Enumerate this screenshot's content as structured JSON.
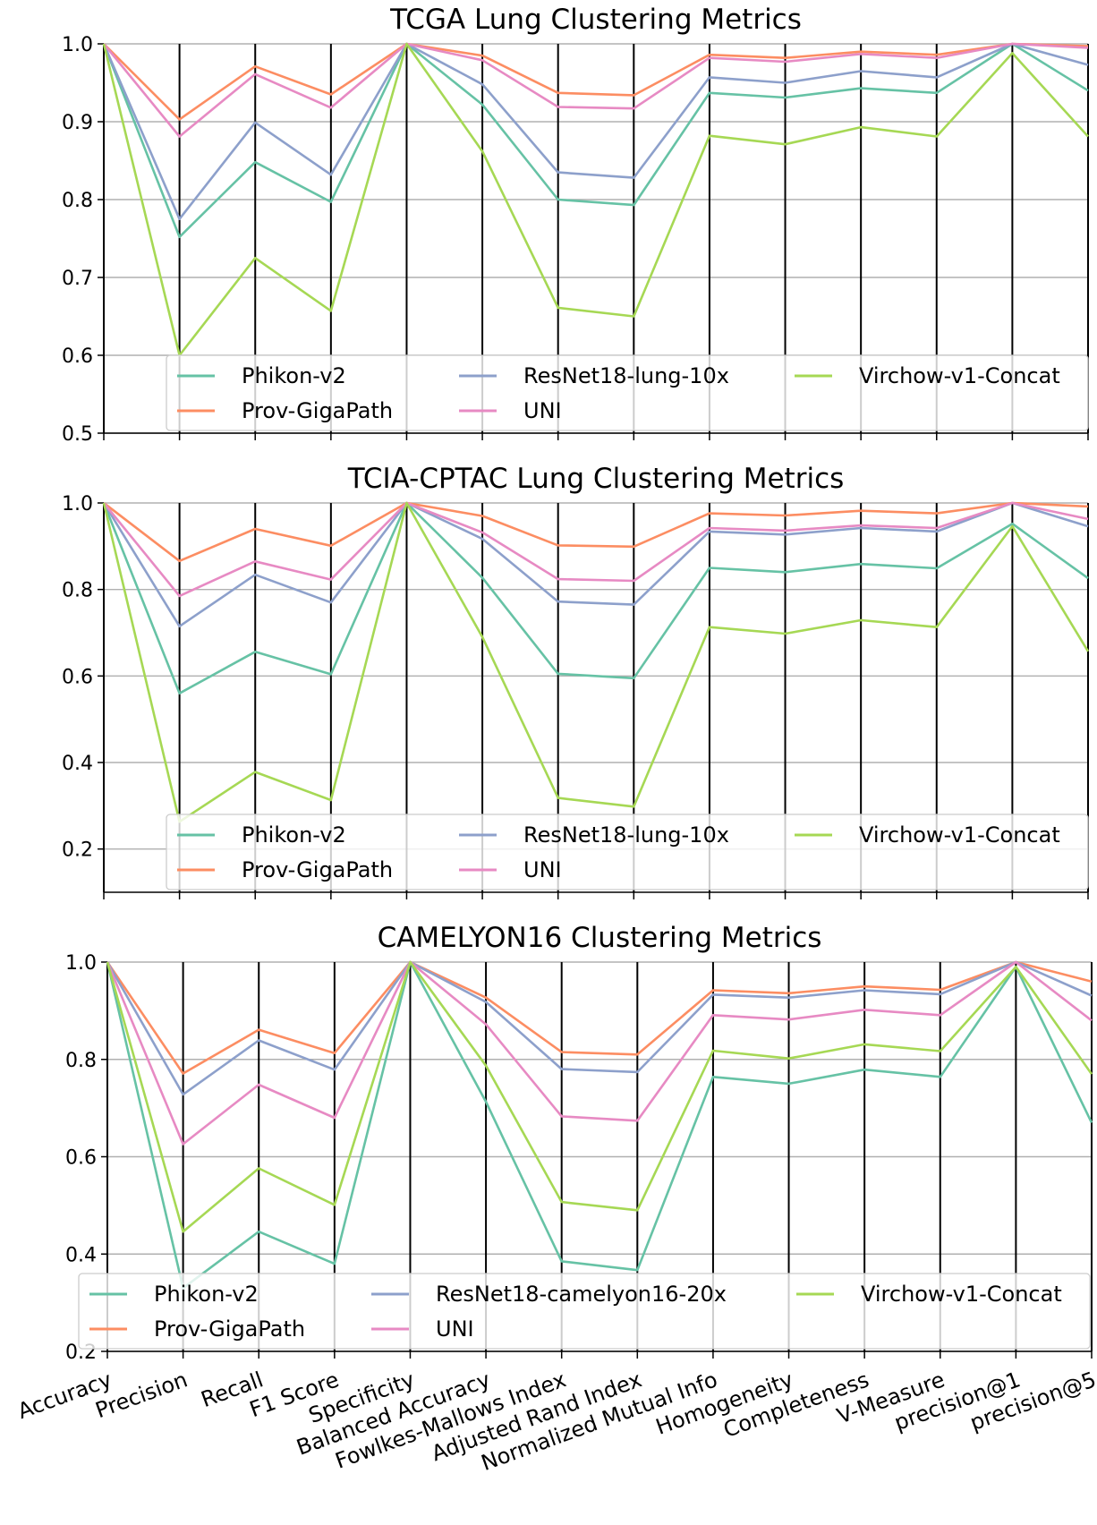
{
  "chart_data": [
    {
      "type": "line",
      "title": "TCGA Lung Clustering Metrics",
      "categories": [
        "Accuracy",
        "Precision",
        "Recall",
        "F1 Score",
        "Specificity",
        "Balanced Accuracy",
        "Fowlkes-Mallows Index",
        "Adjusted Rand Index",
        "Normalized Mutual Info",
        "Homogeneity",
        "Completeness",
        "V-Measure",
        "precision@1",
        "precision@5"
      ],
      "ylim": [
        0.5,
        1.0
      ],
      "yticks": [
        "0.5",
        "0.6",
        "0.7",
        "0.8",
        "0.9",
        "1.0"
      ],
      "grid": true,
      "legend_position": "bottom",
      "series": [
        {
          "name": "Phikon-v2",
          "color": "#66c2a5",
          "values": [
            1.0,
            0.752,
            0.848,
            0.797,
            1.0,
            0.922,
            0.8,
            0.793,
            0.937,
            0.931,
            0.943,
            0.937,
            1.0,
            0.94
          ]
        },
        {
          "name": "Prov-GigaPath",
          "color": "#fc8d62",
          "values": [
            1.0,
            0.903,
            0.971,
            0.935,
            1.0,
            0.985,
            0.937,
            0.934,
            0.986,
            0.982,
            0.99,
            0.986,
            1.0,
            0.997
          ]
        },
        {
          "name": "ResNet18-lung-10x",
          "color": "#8da0cb",
          "values": [
            1.0,
            0.775,
            0.899,
            0.832,
            1.0,
            0.948,
            0.835,
            0.828,
            0.957,
            0.95,
            0.965,
            0.957,
            1.0,
            0.973
          ]
        },
        {
          "name": "UNI",
          "color": "#e78ac3",
          "values": [
            1.0,
            0.881,
            0.961,
            0.918,
            1.0,
            0.979,
            0.919,
            0.917,
            0.982,
            0.977,
            0.987,
            0.982,
            1.0,
            0.995
          ]
        },
        {
          "name": "Virchow-v1-Concat",
          "color": "#a6d854",
          "values": [
            1.0,
            0.6,
            0.725,
            0.657,
            1.0,
            0.862,
            0.661,
            0.65,
            0.882,
            0.871,
            0.893,
            0.881,
            0.988,
            0.881
          ]
        }
      ]
    },
    {
      "type": "line",
      "title": "TCIA-CPTAC Lung Clustering Metrics",
      "categories": [
        "Accuracy",
        "Precision",
        "Recall",
        "F1 Score",
        "Specificity",
        "Balanced Accuracy",
        "Fowlkes-Mallows Index",
        "Adjusted Rand Index",
        "Normalized Mutual Info",
        "Homogeneity",
        "Completeness",
        "V-Measure",
        "precision@1",
        "precision@5"
      ],
      "ylim": [
        0.1,
        1.0
      ],
      "yticks": [
        "0.2",
        "0.4",
        "0.6",
        "0.8",
        "1.0"
      ],
      "grid": true,
      "legend_position": "bottom",
      "series": [
        {
          "name": "Phikon-v2",
          "color": "#66c2a5",
          "values": [
            1.0,
            0.56,
            0.656,
            0.604,
            1.0,
            0.827,
            0.605,
            0.595,
            0.85,
            0.84,
            0.859,
            0.849,
            0.952,
            0.826
          ]
        },
        {
          "name": "Prov-GigaPath",
          "color": "#fc8d62",
          "values": [
            1.0,
            0.866,
            0.94,
            0.901,
            1.0,
            0.97,
            0.902,
            0.899,
            0.976,
            0.971,
            0.982,
            0.976,
            1.0,
            0.992
          ]
        },
        {
          "name": "ResNet18-lung-10x",
          "color": "#8da0cb",
          "values": [
            1.0,
            0.715,
            0.834,
            0.77,
            1.0,
            0.917,
            0.772,
            0.765,
            0.934,
            0.927,
            0.942,
            0.934,
            1.0,
            0.946
          ]
        },
        {
          "name": "UNI",
          "color": "#e78ac3",
          "values": [
            1.0,
            0.785,
            0.865,
            0.823,
            1.0,
            0.932,
            0.824,
            0.82,
            0.942,
            0.936,
            0.948,
            0.942,
            1.0,
            0.963
          ]
        },
        {
          "name": "Virchow-v1-Concat",
          "color": "#a6d854",
          "values": [
            1.0,
            0.263,
            0.378,
            0.313,
            1.0,
            0.69,
            0.318,
            0.298,
            0.713,
            0.698,
            0.729,
            0.713,
            0.946,
            0.657
          ]
        }
      ]
    },
    {
      "type": "line",
      "title": "CAMELYON16 Clustering Metrics",
      "categories": [
        "Accuracy",
        "Precision",
        "Recall",
        "F1 Score",
        "Specificity",
        "Balanced Accuracy",
        "Fowlkes-Mallows Index",
        "Adjusted Rand Index",
        "Normalized Mutual Info",
        "Homogeneity",
        "Completeness",
        "V-Measure",
        "precision@1",
        "precision@5"
      ],
      "ylim": [
        0.2,
        1.0
      ],
      "yticks": [
        "0.2",
        "0.4",
        "0.6",
        "0.8",
        "1.0"
      ],
      "grid": true,
      "legend_position": "bottom",
      "series": [
        {
          "name": "Phikon-v2",
          "color": "#66c2a5",
          "values": [
            1.0,
            0.33,
            0.446,
            0.38,
            1.0,
            0.713,
            0.385,
            0.367,
            0.764,
            0.75,
            0.779,
            0.764,
            0.99,
            0.67
          ]
        },
        {
          "name": "Prov-GigaPath",
          "color": "#fc8d62",
          "values": [
            1.0,
            0.771,
            0.861,
            0.813,
            1.0,
            0.927,
            0.815,
            0.81,
            0.942,
            0.936,
            0.95,
            0.943,
            1.0,
            0.96
          ]
        },
        {
          "name": "ResNet18-camelyon16-20x",
          "color": "#8da0cb",
          "values": [
            1.0,
            0.728,
            0.839,
            0.779,
            1.0,
            0.918,
            0.78,
            0.774,
            0.933,
            0.927,
            0.942,
            0.934,
            1.0,
            0.931
          ]
        },
        {
          "name": "UNI",
          "color": "#e78ac3",
          "values": [
            1.0,
            0.626,
            0.748,
            0.68,
            1.0,
            0.872,
            0.683,
            0.674,
            0.891,
            0.882,
            0.902,
            0.891,
            1.0,
            0.88
          ]
        },
        {
          "name": "Virchow-v1-Concat",
          "color": "#a6d854",
          "values": [
            1.0,
            0.446,
            0.576,
            0.501,
            1.0,
            0.787,
            0.507,
            0.49,
            0.818,
            0.802,
            0.831,
            0.817,
            0.99,
            0.77
          ]
        }
      ]
    }
  ]
}
